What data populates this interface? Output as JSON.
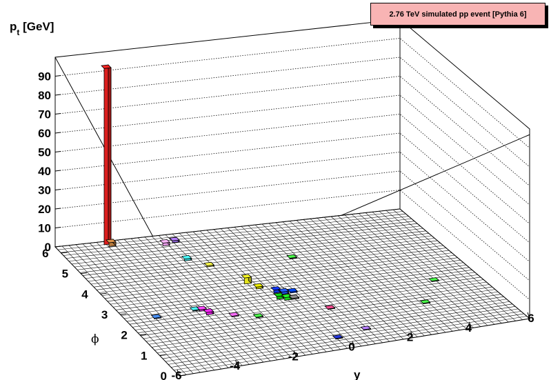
{
  "chart_data": {
    "type": "lego3d",
    "title": "2.76 TeV simulated pp event [Pythia 6]",
    "zlabel": "p_t [GeV]",
    "zlabel_main": "p",
    "zlabel_sub": "t",
    "zlabel_unit": " [GeV]",
    "xlabel": "y",
    "ylabel": "ϕ",
    "xlim": [
      -6,
      6
    ],
    "ylim": [
      0,
      6.3
    ],
    "zlim": [
      0,
      100
    ],
    "xticks": [
      "-6",
      "-4",
      "-2",
      "0",
      "2",
      "4",
      "6"
    ],
    "yticks": [
      "0",
      "1",
      "2",
      "3",
      "4",
      "5",
      "6"
    ],
    "zticks": [
      "0",
      "10",
      "20",
      "30",
      "40",
      "50",
      "60",
      "70",
      "80",
      "90"
    ],
    "grid": true,
    "bars": [
      {
        "x": -4.4,
        "y": 6.15,
        "z": 93,
        "color": "#e8201e"
      },
      {
        "x": -4.3,
        "y": 6.05,
        "z": 2,
        "color": "#c08040"
      },
      {
        "x": -2.6,
        "y": 5.8,
        "z": 1.5,
        "color": "#f0a0f0"
      },
      {
        "x": -2.2,
        "y": 5.9,
        "z": 1,
        "color": "#a070f0"
      },
      {
        "x": -2.4,
        "y": 5.0,
        "z": 1,
        "color": "#40e0e0"
      },
      {
        "x": -1.9,
        "y": 4.6,
        "z": 0.6,
        "color": "#e0e040"
      },
      {
        "x": -1.3,
        "y": 3.6,
        "z": 3.2,
        "color": "#f0f020"
      },
      {
        "x": -1.1,
        "y": 3.3,
        "z": 1,
        "color": "#d0d000"
      },
      {
        "x": -0.7,
        "y": 3.0,
        "z": 1.6,
        "color": "#1030e0"
      },
      {
        "x": -0.5,
        "y": 2.9,
        "z": 1.2,
        "color": "#2050f0"
      },
      {
        "x": -0.8,
        "y": 2.7,
        "z": 1.5,
        "color": "#10c010"
      },
      {
        "x": -0.6,
        "y": 2.6,
        "z": 1.5,
        "color": "#20e020"
      },
      {
        "x": -0.35,
        "y": 2.6,
        "z": 0.5,
        "color": "#808080"
      },
      {
        "x": -0.2,
        "y": 2.9,
        "z": 0.6,
        "color": "#0040f0"
      },
      {
        "x": -3.4,
        "y": 2.45,
        "z": 1.3,
        "color": "#f020f0"
      },
      {
        "x": -3.5,
        "y": 2.65,
        "z": 0.8,
        "color": "#e040e0"
      },
      {
        "x": -3.7,
        "y": 2.7,
        "z": 0.4,
        "color": "#40e0e0"
      },
      {
        "x": -2.7,
        "y": 2.2,
        "z": 0.4,
        "color": "#e060e0"
      },
      {
        "x": -5.1,
        "y": 2.6,
        "z": 0.4,
        "color": "#4080f0"
      },
      {
        "x": -2.0,
        "y": 2.0,
        "z": 0.3,
        "color": "#40e040"
      },
      {
        "x": -0.3,
        "y": 0.5,
        "z": 0.3,
        "color": "#2030c0"
      },
      {
        "x": 0.8,
        "y": 0.7,
        "z": 0.3,
        "color": "#a070f0"
      },
      {
        "x": 0.4,
        "y": 1.9,
        "z": 0.3,
        "color": "#e04080"
      },
      {
        "x": 3.4,
        "y": 1.5,
        "z": 0.3,
        "color": "#40e040"
      },
      {
        "x": 4.4,
        "y": 2.5,
        "z": 0.3,
        "color": "#40e040"
      },
      {
        "x": 0.9,
        "y": 4.5,
        "z": 0.3,
        "color": "#40e040"
      }
    ]
  }
}
